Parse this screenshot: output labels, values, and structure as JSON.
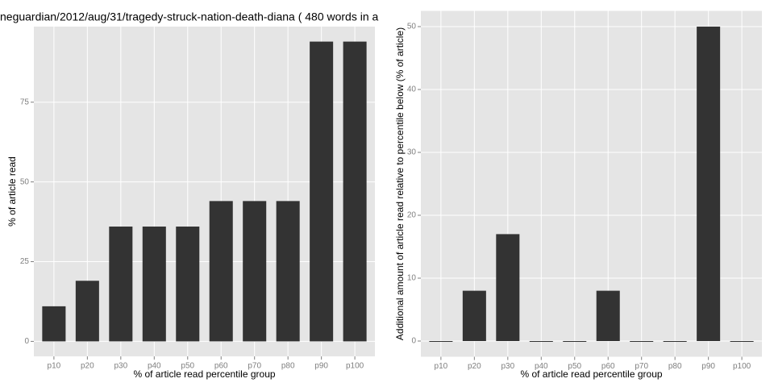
{
  "chart_data": [
    {
      "type": "bar",
      "title": "neguardian/2012/aug/31/tragedy-struck-nation-death-diana ( 480 words in a",
      "x_label": "% of article read percentile group",
      "y_label": "% of article read",
      "categories": [
        "p10",
        "p20",
        "p30",
        "p40",
        "p50",
        "p60",
        "p70",
        "p80",
        "p90",
        "p100"
      ],
      "values": [
        11,
        19,
        36,
        36,
        36,
        44,
        44,
        44,
        94,
        94
      ],
      "color": "#333333",
      "ylim": [
        -4.7,
        98.7
      ],
      "yticks": [
        0,
        25,
        50,
        75
      ],
      "grid": true
    },
    {
      "type": "bar",
      "x_label": "% of article read percentile group",
      "y_label": "Additional amount of article read relative to percentile below (% of article)",
      "categories": [
        "p10",
        "p20",
        "p30",
        "p40",
        "p50",
        "p60",
        "p70",
        "p80",
        "p90",
        "p100"
      ],
      "values": [
        0,
        8,
        17,
        0,
        0,
        8,
        0,
        0,
        50,
        0
      ],
      "color": "#333333",
      "ylim": [
        -2.5,
        52.5
      ],
      "yticks": [
        0,
        10,
        20,
        30,
        40,
        50
      ],
      "grid": true
    }
  ]
}
